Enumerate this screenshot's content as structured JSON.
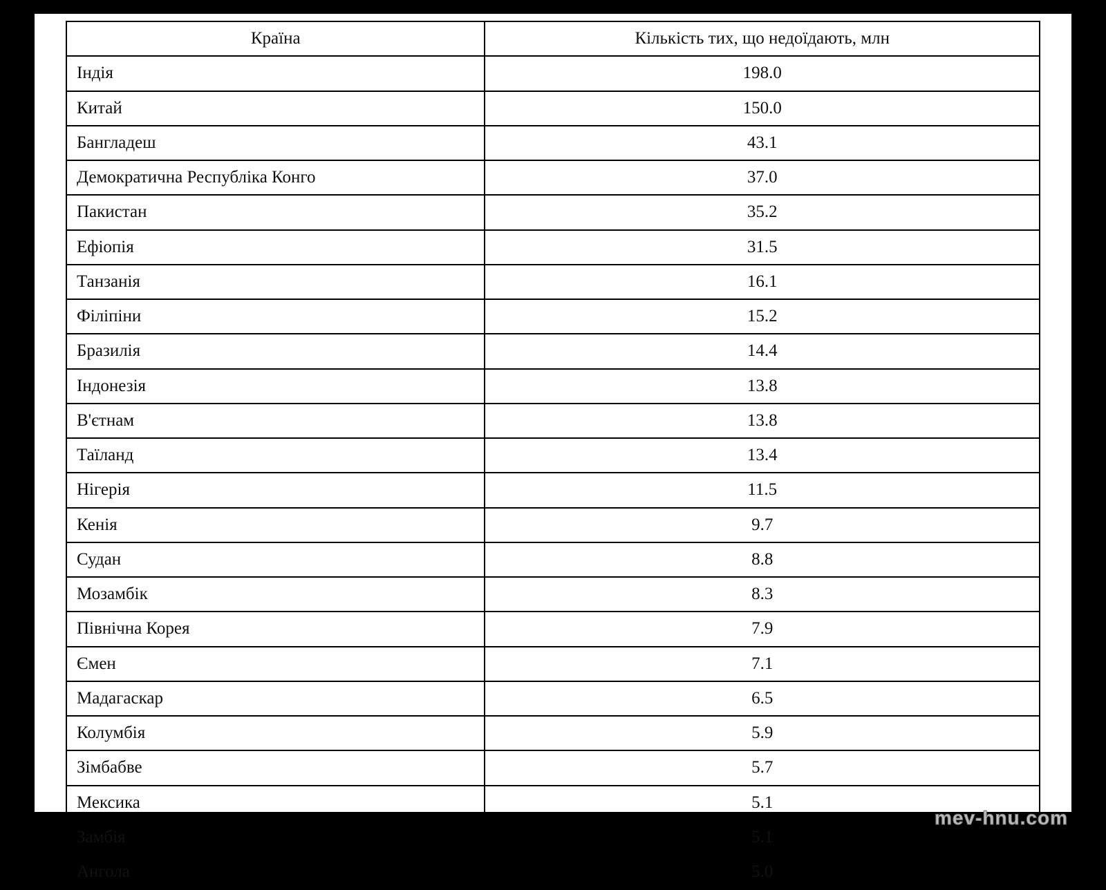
{
  "table": {
    "type": "table",
    "border_color": "#000000",
    "background_color": "#ffffff",
    "text_color": "#111111",
    "font_family": "Times New Roman",
    "header_fontsize": 25,
    "cell_fontsize": 25,
    "column_widths_pct": [
      43,
      57
    ],
    "columns": [
      "Країна",
      "Кількість тих, що недоїдають, млн"
    ],
    "alignment": [
      "left",
      "center"
    ],
    "rows": [
      [
        "Індія",
        "198.0"
      ],
      [
        "Китай",
        "150.0"
      ],
      [
        "Бангладеш",
        "43.1"
      ],
      [
        "Демократична Республіка Конго",
        "37.0"
      ],
      [
        "Пакистан",
        "35.2"
      ],
      [
        "Ефіопія",
        "31.5"
      ],
      [
        "Танзанія",
        "16.1"
      ],
      [
        "Філіпіни",
        "15.2"
      ],
      [
        "Бразилія",
        "14.4"
      ],
      [
        "Індонезія",
        "13.8"
      ],
      [
        "В'єтнам",
        "13.8"
      ],
      [
        "Таїланд",
        "13.4"
      ],
      [
        "Нігерія",
        "11.5"
      ],
      [
        "Кенія",
        "9.7"
      ],
      [
        "Судан",
        "8.8"
      ],
      [
        "Мозамбік",
        "8.3"
      ],
      [
        "Північна Корея",
        "7.9"
      ],
      [
        "Ємен",
        "7.1"
      ],
      [
        "Мадагаскар",
        "6.5"
      ],
      [
        "Колумбія",
        "5.9"
      ],
      [
        "Зімбабве",
        "5.7"
      ],
      [
        "Мексика",
        "5.1"
      ],
      [
        "Замбія",
        "5.1"
      ],
      [
        "Ангола",
        "5.0"
      ]
    ]
  },
  "watermark": "mev-hnu.com"
}
